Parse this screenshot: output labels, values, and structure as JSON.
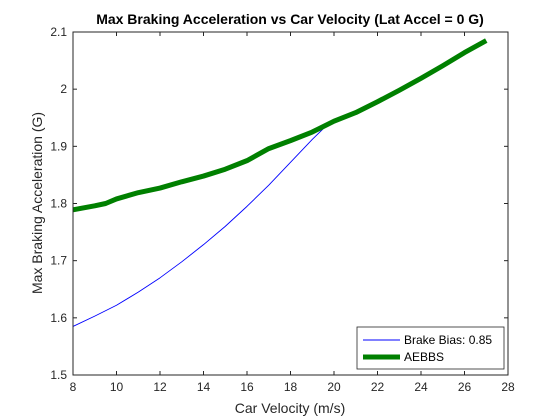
{
  "chart_data": {
    "type": "line",
    "title": "Max Braking Acceleration vs Car Velocity (Lat Accel = 0 G)",
    "xlabel": "Car Velocity (m/s)",
    "ylabel": "Max Braking Acceleration (G)",
    "xlim": [
      8,
      28
    ],
    "ylim": [
      1.5,
      2.1
    ],
    "xticks": [
      8,
      10,
      12,
      14,
      16,
      18,
      20,
      22,
      24,
      26,
      28
    ],
    "yticks": [
      1.5,
      1.6,
      1.7,
      1.8,
      1.9,
      2,
      2.1
    ],
    "grid": false,
    "legend_position": "bottom-right",
    "series": [
      {
        "name": "Brake Bias: 0.85",
        "color": "#0000ff",
        "line_width": "thin",
        "x": [
          8,
          9,
          10,
          11,
          12,
          13,
          14,
          15,
          16,
          17,
          18,
          19,
          19.7
        ],
        "y": [
          1.585,
          1.603,
          1.622,
          1.645,
          1.67,
          1.698,
          1.728,
          1.76,
          1.795,
          1.832,
          1.872,
          1.912,
          1.938
        ]
      },
      {
        "name": "AEBBS",
        "color": "#008000",
        "line_width": "thick",
        "x": [
          8,
          9,
          9.5,
          10,
          11,
          12,
          13,
          14,
          15,
          16,
          17,
          18,
          19,
          20,
          21,
          22,
          23,
          24,
          25,
          26,
          27
        ],
        "y": [
          1.789,
          1.796,
          1.8,
          1.808,
          1.819,
          1.827,
          1.838,
          1.848,
          1.86,
          1.875,
          1.896,
          1.91,
          1.925,
          1.944,
          1.959,
          1.978,
          1.998,
          2.019,
          2.041,
          2.064,
          2.085
        ]
      }
    ]
  }
}
